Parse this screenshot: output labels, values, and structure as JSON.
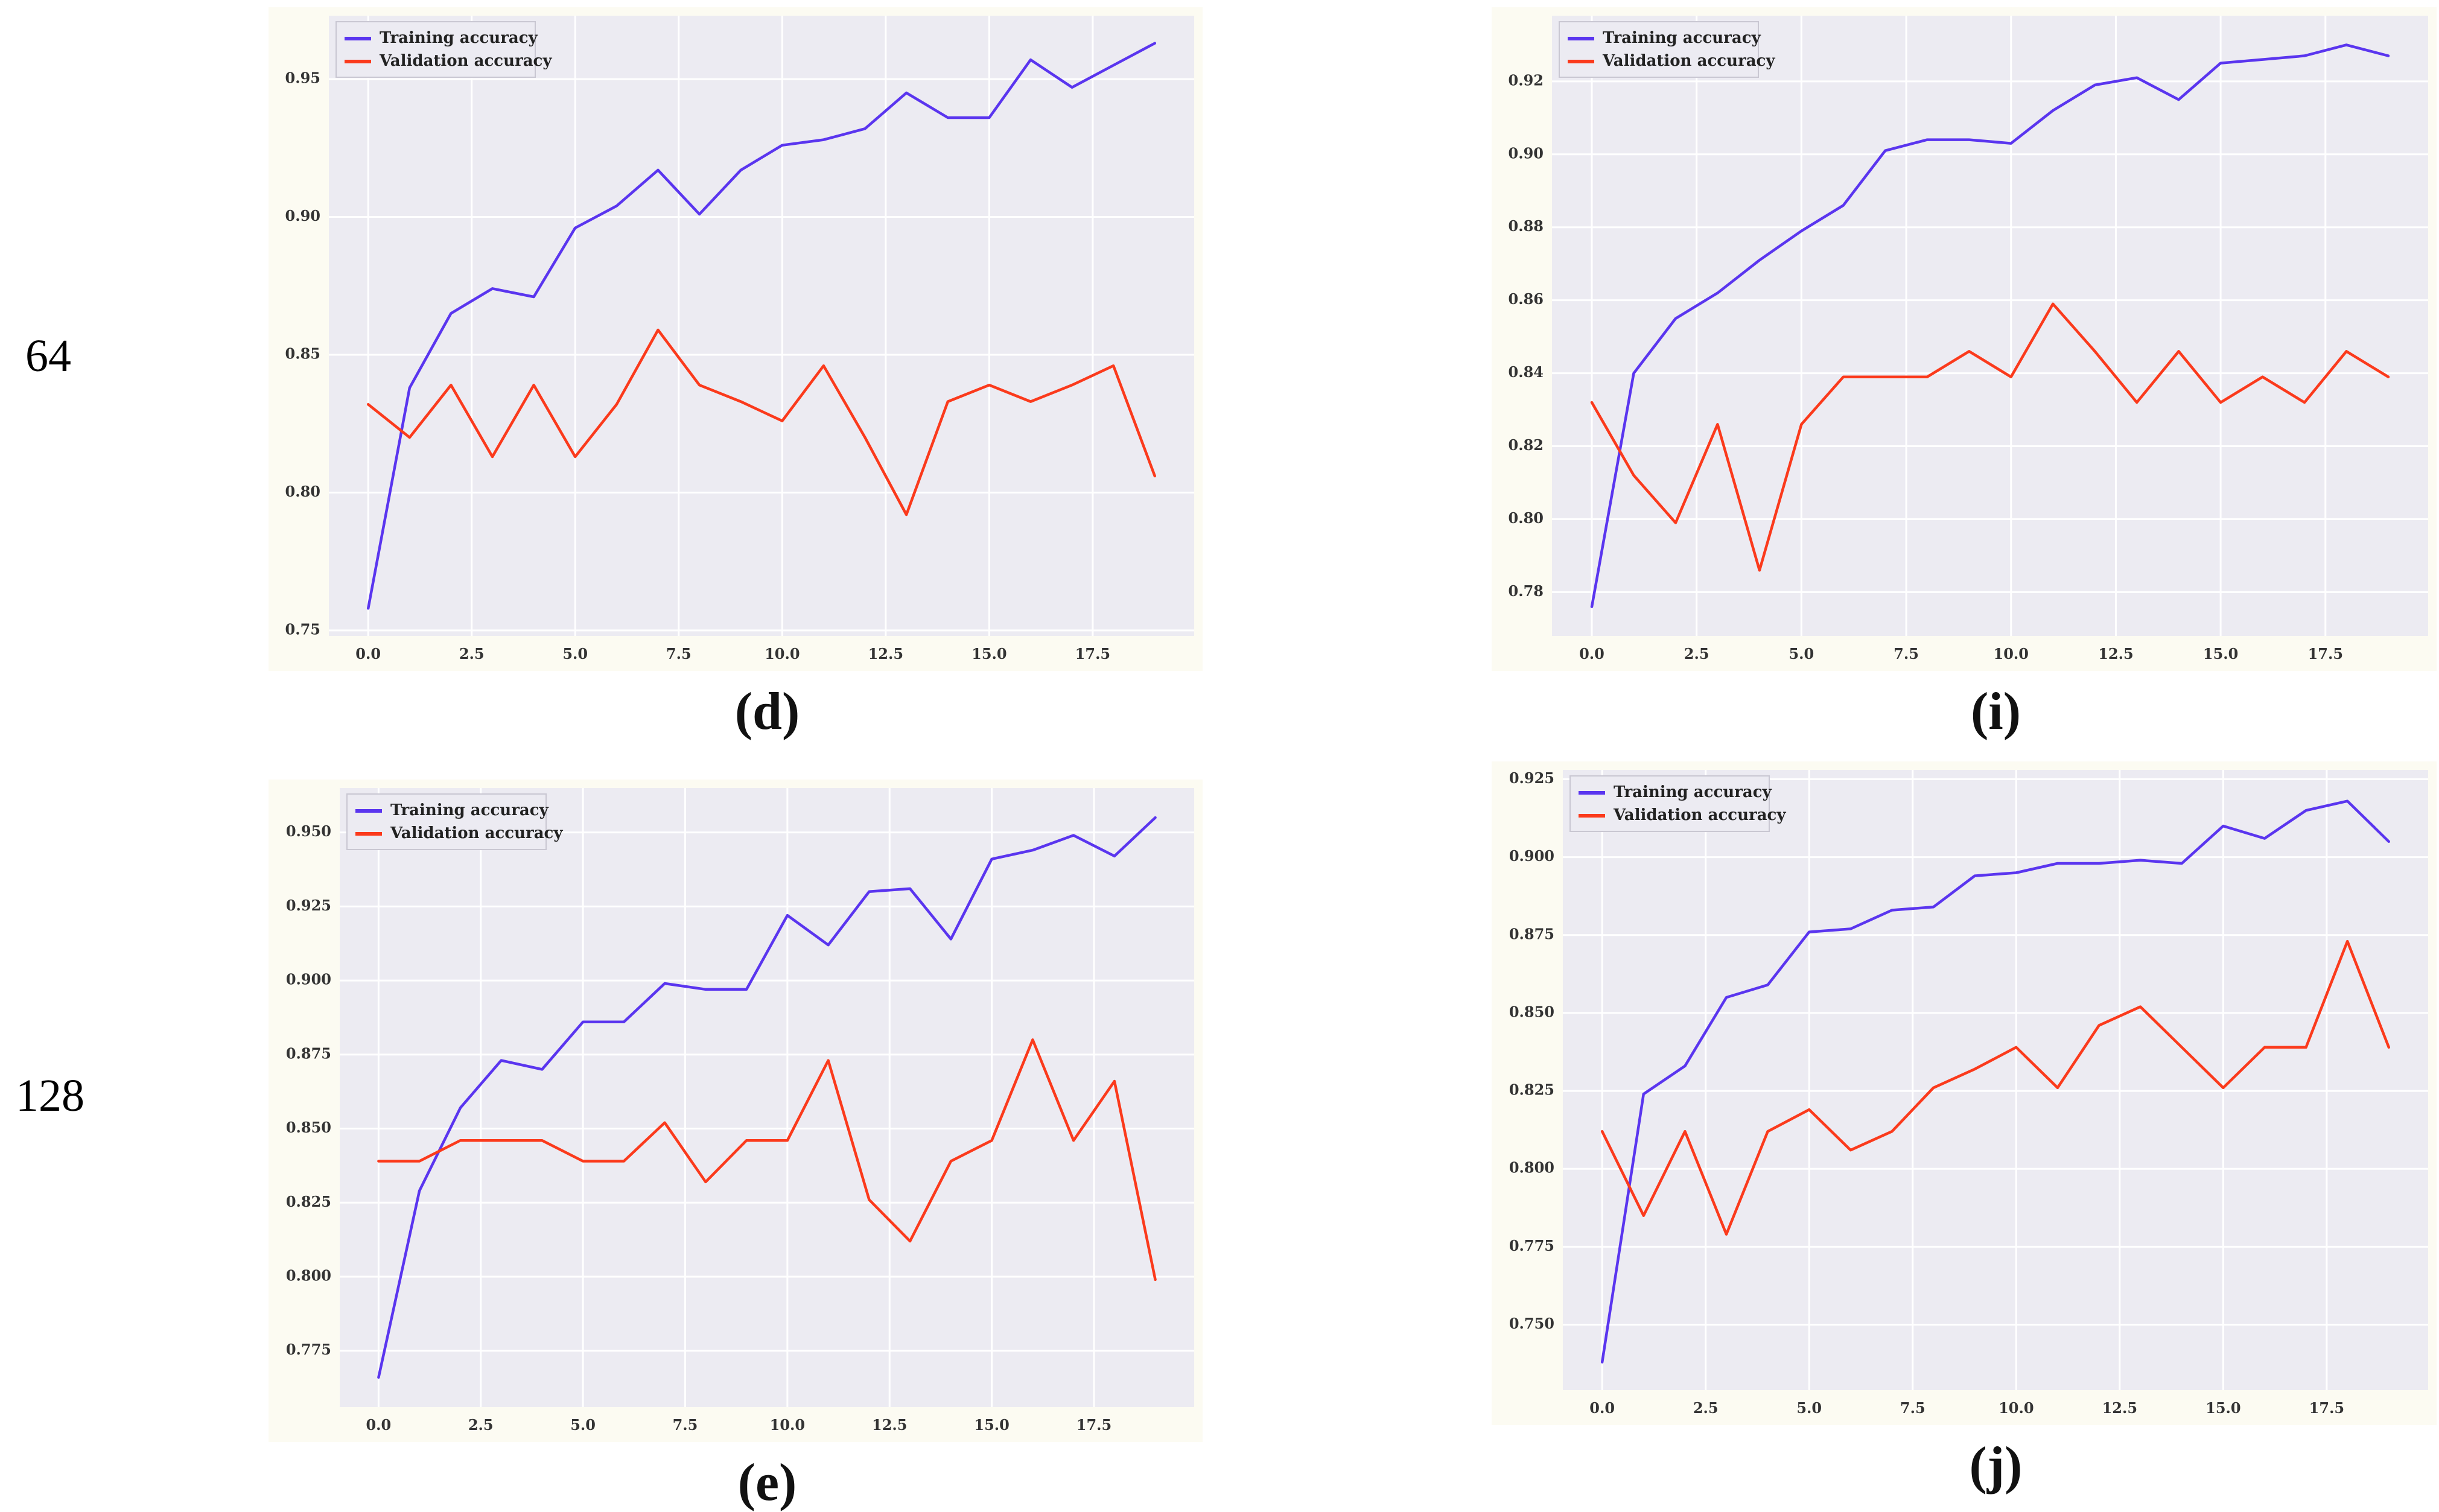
{
  "page": {
    "background": "#ffffff"
  },
  "row_labels": [
    "64",
    "128"
  ],
  "legend": {
    "labels": [
      "Training accuracy",
      "Validation accuracy"
    ]
  },
  "colors": {
    "training": "#5a35ef",
    "validation": "#fb3a1c",
    "plot_bg": "#ecebf2",
    "grid": "#ffffff",
    "fig_bg": "#fcfbf2",
    "tick": "#333333",
    "legend_bg": "#ecebf2",
    "legend_border": "#c9c7d2",
    "caption": "#111111"
  },
  "chart_data": [
    {
      "id": "d",
      "caption": "(d)",
      "row_label": "64",
      "type": "line",
      "title": "",
      "xlabel": "",
      "ylabel": "",
      "x": [
        0,
        1,
        2,
        3,
        4,
        5,
        6,
        7,
        8,
        9,
        10,
        11,
        12,
        13,
        14,
        15,
        16,
        17,
        18,
        19
      ],
      "xlim": [
        -0.95,
        19.95
      ],
      "ylim": [
        0.748,
        0.973
      ],
      "xticks": {
        "values": [
          0,
          2.5,
          5,
          7.5,
          10,
          12.5,
          15,
          17.5
        ],
        "labels": [
          "0.0",
          "2.5",
          "5.0",
          "7.5",
          "10.0",
          "12.5",
          "15.0",
          "17.5"
        ]
      },
      "yticks": {
        "values": [
          0.75,
          0.8,
          0.85,
          0.9,
          0.95
        ],
        "labels": [
          "0.75",
          "0.80",
          "0.85",
          "0.90",
          "0.95"
        ]
      },
      "legend_position": "top-left",
      "grid": true,
      "series": [
        {
          "name": "Training accuracy",
          "color_key": "training",
          "values": [
            0.758,
            0.838,
            0.865,
            0.874,
            0.871,
            0.896,
            0.904,
            0.917,
            0.901,
            0.917,
            0.926,
            0.928,
            0.932,
            0.945,
            0.936,
            0.936,
            0.957,
            0.947,
            0.955,
            0.963
          ]
        },
        {
          "name": "Validation accuracy",
          "color_key": "validation",
          "values": [
            0.832,
            0.82,
            0.839,
            0.813,
            0.839,
            0.813,
            0.832,
            0.859,
            0.839,
            0.833,
            0.826,
            0.846,
            0.82,
            0.792,
            0.833,
            0.839,
            0.833,
            0.839,
            0.846,
            0.806
          ]
        }
      ]
    },
    {
      "id": "i",
      "caption": "(i)",
      "row_label": "64",
      "type": "line",
      "title": "",
      "xlabel": "",
      "ylabel": "",
      "x": [
        0,
        1,
        2,
        3,
        4,
        5,
        6,
        7,
        8,
        9,
        10,
        11,
        12,
        13,
        14,
        15,
        16,
        17,
        18,
        19
      ],
      "xlim": [
        -0.95,
        19.95
      ],
      "ylim": [
        0.768,
        0.938
      ],
      "xticks": {
        "values": [
          0,
          2.5,
          5,
          7.5,
          10,
          12.5,
          15,
          17.5
        ],
        "labels": [
          "0.0",
          "2.5",
          "5.0",
          "7.5",
          "10.0",
          "12.5",
          "15.0",
          "17.5"
        ]
      },
      "yticks": {
        "values": [
          0.78,
          0.8,
          0.82,
          0.84,
          0.86,
          0.88,
          0.9,
          0.92
        ],
        "labels": [
          "0.78",
          "0.80",
          "0.82",
          "0.84",
          "0.86",
          "0.88",
          "0.90",
          "0.92"
        ]
      },
      "legend_position": "top-left",
      "grid": true,
      "series": [
        {
          "name": "Training accuracy",
          "color_key": "training",
          "values": [
            0.776,
            0.84,
            0.855,
            0.862,
            0.871,
            0.879,
            0.886,
            0.901,
            0.904,
            0.904,
            0.903,
            0.912,
            0.919,
            0.921,
            0.915,
            0.925,
            0.926,
            0.927,
            0.93,
            0.927
          ]
        },
        {
          "name": "Validation accuracy",
          "color_key": "validation",
          "values": [
            0.832,
            0.812,
            0.799,
            0.826,
            0.786,
            0.826,
            0.839,
            0.839,
            0.839,
            0.846,
            0.839,
            0.859,
            0.846,
            0.832,
            0.846,
            0.832,
            0.839,
            0.832,
            0.846,
            0.839
          ]
        }
      ]
    },
    {
      "id": "e",
      "caption": "(e)",
      "row_label": "128",
      "type": "line",
      "title": "",
      "xlabel": "",
      "ylabel": "",
      "x": [
        0,
        1,
        2,
        3,
        4,
        5,
        6,
        7,
        8,
        9,
        10,
        11,
        12,
        13,
        14,
        15,
        16,
        17,
        18,
        19
      ],
      "xlim": [
        -0.95,
        19.95
      ],
      "ylim": [
        0.756,
        0.965
      ],
      "xticks": {
        "values": [
          0,
          2.5,
          5,
          7.5,
          10,
          12.5,
          15,
          17.5
        ],
        "labels": [
          "0.0",
          "2.5",
          "5.0",
          "7.5",
          "10.0",
          "12.5",
          "15.0",
          "17.5"
        ]
      },
      "yticks": {
        "values": [
          0.775,
          0.8,
          0.825,
          0.85,
          0.875,
          0.9,
          0.925,
          0.95
        ],
        "labels": [
          "0.775",
          "0.800",
          "0.825",
          "0.850",
          "0.875",
          "0.900",
          "0.925",
          "0.950"
        ]
      },
      "legend_position": "top-left",
      "grid": true,
      "series": [
        {
          "name": "Training accuracy",
          "color_key": "training",
          "values": [
            0.766,
            0.829,
            0.857,
            0.873,
            0.87,
            0.886,
            0.886,
            0.899,
            0.897,
            0.897,
            0.922,
            0.912,
            0.93,
            0.931,
            0.914,
            0.941,
            0.944,
            0.949,
            0.942,
            0.955
          ]
        },
        {
          "name": "Validation accuracy",
          "color_key": "validation",
          "values": [
            0.839,
            0.839,
            0.846,
            0.846,
            0.846,
            0.839,
            0.839,
            0.852,
            0.832,
            0.846,
            0.846,
            0.873,
            0.826,
            0.812,
            0.839,
            0.846,
            0.88,
            0.846,
            0.866,
            0.799
          ]
        }
      ]
    },
    {
      "id": "j",
      "caption": "(j)",
      "row_label": "128",
      "type": "line",
      "title": "",
      "xlabel": "",
      "ylabel": "",
      "x": [
        0,
        1,
        2,
        3,
        4,
        5,
        6,
        7,
        8,
        9,
        10,
        11,
        12,
        13,
        14,
        15,
        16,
        17,
        18,
        19
      ],
      "xlim": [
        -0.95,
        19.95
      ],
      "ylim": [
        0.729,
        0.928
      ],
      "xticks": {
        "values": [
          0,
          2.5,
          5,
          7.5,
          10,
          12.5,
          15,
          17.5
        ],
        "labels": [
          "0.0",
          "2.5",
          "5.0",
          "7.5",
          "10.0",
          "12.5",
          "15.0",
          "17.5"
        ]
      },
      "yticks": {
        "values": [
          0.75,
          0.775,
          0.8,
          0.825,
          0.85,
          0.875,
          0.9,
          0.925
        ],
        "labels": [
          "0.750",
          "0.775",
          "0.800",
          "0.825",
          "0.850",
          "0.875",
          "0.900",
          "0.925"
        ]
      },
      "legend_position": "top-left",
      "grid": true,
      "series": [
        {
          "name": "Training accuracy",
          "color_key": "training",
          "values": [
            0.738,
            0.824,
            0.833,
            0.855,
            0.859,
            0.876,
            0.877,
            0.883,
            0.884,
            0.894,
            0.895,
            0.898,
            0.898,
            0.899,
            0.898,
            0.91,
            0.906,
            0.915,
            0.918,
            0.905
          ]
        },
        {
          "name": "Validation accuracy",
          "color_key": "validation",
          "values": [
            0.812,
            0.785,
            0.812,
            0.779,
            0.812,
            0.819,
            0.806,
            0.812,
            0.826,
            0.832,
            0.839,
            0.826,
            0.846,
            0.852,
            0.839,
            0.826,
            0.839,
            0.839,
            0.873,
            0.839
          ]
        }
      ]
    }
  ]
}
